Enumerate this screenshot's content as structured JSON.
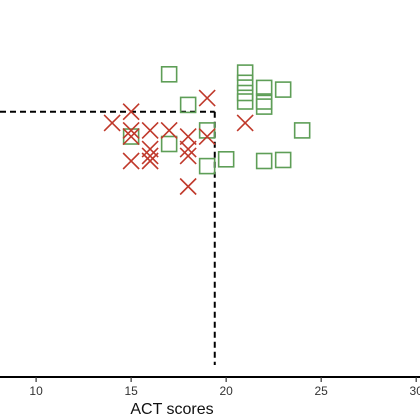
{
  "chart_data": {
    "type": "scatter",
    "xlabel": "ACT scores",
    "ylabel": "",
    "xlim": [
      8.1,
      30.2
    ],
    "ylim": [
      0,
      1
    ],
    "x_ticks": [
      10,
      15,
      20,
      25,
      30
    ],
    "x_tick_labels": [
      "10",
      "15",
      "20",
      "25",
      "30"
    ],
    "grid": false,
    "colors": {
      "square": "#5e9e57",
      "cross": "#c0392b",
      "axis": "#000000"
    },
    "threshold": {
      "x": 19.4,
      "y": 0.745
    },
    "series": [
      {
        "marker": "square",
        "points": [
          {
            "x": 17,
            "y": 0.855
          },
          {
            "x": 21,
            "y": 0.86
          },
          {
            "x": 21,
            "y": 0.83
          },
          {
            "x": 21,
            "y": 0.8
          },
          {
            "x": 22,
            "y": 0.815
          },
          {
            "x": 23,
            "y": 0.81
          },
          {
            "x": 21,
            "y": 0.775
          },
          {
            "x": 22,
            "y": 0.775
          },
          {
            "x": 22,
            "y": 0.76
          },
          {
            "x": 18,
            "y": 0.765
          },
          {
            "x": 19,
            "y": 0.69
          },
          {
            "x": 24,
            "y": 0.69
          },
          {
            "x": 15,
            "y": 0.672
          },
          {
            "x": 17,
            "y": 0.65
          },
          {
            "x": 20,
            "y": 0.605
          },
          {
            "x": 22,
            "y": 0.6
          },
          {
            "x": 23,
            "y": 0.603
          },
          {
            "x": 19,
            "y": 0.585
          }
        ]
      },
      {
        "marker": "cross",
        "points": [
          {
            "x": 19,
            "y": 0.785
          },
          {
            "x": 15,
            "y": 0.745
          },
          {
            "x": 14,
            "y": 0.712
          },
          {
            "x": 21,
            "y": 0.712
          },
          {
            "x": 15,
            "y": 0.69
          },
          {
            "x": 16,
            "y": 0.69
          },
          {
            "x": 17,
            "y": 0.69
          },
          {
            "x": 15,
            "y": 0.672
          },
          {
            "x": 18,
            "y": 0.672
          },
          {
            "x": 19,
            "y": 0.672
          },
          {
            "x": 16,
            "y": 0.635
          },
          {
            "x": 18,
            "y": 0.635
          },
          {
            "x": 16,
            "y": 0.615
          },
          {
            "x": 18,
            "y": 0.615
          },
          {
            "x": 15,
            "y": 0.6
          },
          {
            "x": 16,
            "y": 0.6
          },
          {
            "x": 18,
            "y": 0.525
          }
        ]
      }
    ]
  }
}
